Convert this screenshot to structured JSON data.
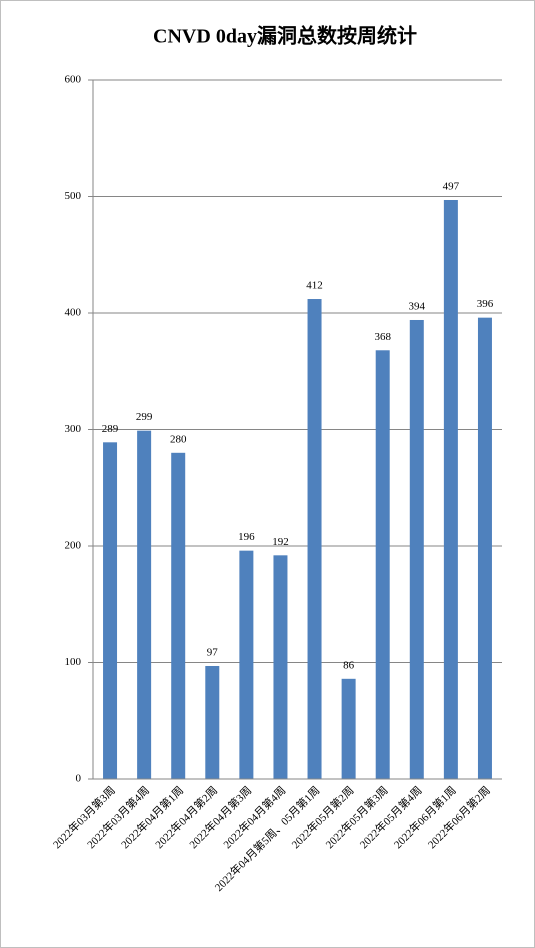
{
  "chart_data": {
    "type": "bar",
    "title": "CNVD 0day漏洞总数按周统计",
    "categories": [
      "2022年03月第3周",
      "2022年03月第4周",
      "2022年04月第1周",
      "2022年04月第2周",
      "2022年04月第3周",
      "2022年04月第4周",
      "2022年04月第5周、05月第1周",
      "2022年05月第2周",
      "2022年05月第3周",
      "2022年05月第4周",
      "2022年06月第1周",
      "2022年06月第2周"
    ],
    "values": [
      289,
      299,
      280,
      97,
      196,
      192,
      412,
      86,
      368,
      394,
      497,
      396
    ],
    "color": "#4f81bd",
    "ylim": [
      0,
      600
    ],
    "yticks": [
      0,
      100,
      200,
      300,
      400,
      500,
      600
    ],
    "grid": true
  }
}
